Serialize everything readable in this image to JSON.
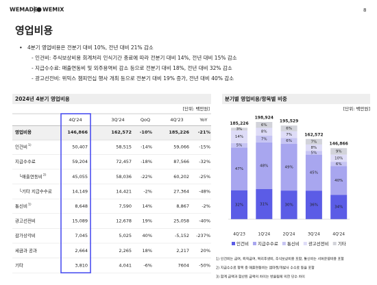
{
  "header": {
    "logo": "WEMADE",
    "logo2": "WEMIX",
    "page": "8"
  },
  "title": "영업비용",
  "bullets": {
    "main": "4분기 영업비용은 전분기 대비 10%, 전년 대비 21% 감소",
    "sub": [
      "- 인건비: 주식보상비용 회계처리 인식기간 종료에 따라 전분기 대비 14%, 전년 대비 15% 감소",
      "- 지급수수료: 매출연동비 및 외주용역비 감소 등으로 전분기 대비 18%, 전년 대비 32% 감소",
      "- 광고선전비: 위믹스 챔피언십 행사 개최 등으로 전분기 대비 19% 증가, 전년 대비 40% 감소"
    ]
  },
  "table": {
    "title": "2024년 4분기 영업비용",
    "unit": "[단위: 백만원]",
    "columns": [
      "4Q'24",
      "3Q'24",
      "QoQ",
      "4Q'23",
      "YoY"
    ],
    "rows": [
      {
        "label": "영업비용",
        "values": [
          "146,866",
          "162,572",
          "-10%",
          "185,226",
          "-21%"
        ]
      },
      {
        "label": "인건비",
        "note": "1)",
        "values": [
          "50,407",
          "58,515",
          "-14%",
          "59,066",
          "-15%"
        ]
      },
      {
        "label": "지급수수료",
        "values": [
          "59,204",
          "72,457",
          "-18%",
          "87,566",
          "-32%"
        ]
      },
      {
        "label": "└매출연동비",
        "note": "2)",
        "values": [
          "45,055",
          "58,036",
          "-22%",
          "60,202",
          "-25%"
        ]
      },
      {
        "label": "└기타 지급수수료",
        "values": [
          "14,149",
          "14,421",
          "-2%",
          "27,364",
          "-48%"
        ]
      },
      {
        "label": "통신비",
        "note": "1)",
        "values": [
          "8,648",
          "7,590",
          "14%",
          "8,867",
          "-2%"
        ]
      },
      {
        "label": "광고선전비",
        "values": [
          "15,089",
          "12,678",
          "19%",
          "25,058",
          "-40%"
        ]
      },
      {
        "label": "감가상각비",
        "values": [
          "7,045",
          "5,025",
          "40%",
          "-5,152",
          "-237%"
        ]
      },
      {
        "label": "세금과 공과",
        "values": [
          "2,664",
          "2,265",
          "18%",
          "2,217",
          "20%"
        ]
      },
      {
        "label": "기타",
        "values": [
          "3,810",
          "4,041",
          "-6%",
          "7604",
          "-50%"
        ]
      }
    ]
  },
  "chart_data": {
    "type": "stacked_bar",
    "title": "분기별 영업비용/항목별 비중",
    "unit": "[단위: 백만원]",
    "categories": [
      "4Q'23",
      "1Q'24",
      "2Q'24",
      "3Q'24",
      "4Q'24"
    ],
    "totals": {
      "values": [
        185226,
        198924,
        195529,
        162572,
        146866
      ],
      "value_labels": [
        "185,226",
        "198,924",
        "195,529",
        "162,572",
        "146,866"
      ]
    },
    "series": [
      {
        "name": "인건비",
        "color": "#5b5ce6",
        "values": [
          32,
          31,
          30,
          36,
          34
        ],
        "value_labels": [
          "32%",
          "31%",
          "30%",
          "36%",
          "34%"
        ]
      },
      {
        "name": "지급수수료",
        "color": "#a8a6ef",
        "values": [
          47,
          48,
          49,
          45,
          40
        ],
        "value_labels": [
          "47%",
          "48%",
          "49%",
          "45%",
          "40%"
        ]
      },
      {
        "name": "통신비",
        "color": "#c6c4f3",
        "values": [
          5,
          7,
          6,
          5,
          6
        ],
        "value_labels": [
          "5%",
          "7%",
          "6%",
          "5%",
          "6%"
        ]
      },
      {
        "name": "광고선전비",
        "color": "#dedcf7",
        "values": [
          14,
          8,
          7,
          8,
          10
        ],
        "value_labels": [
          "14%",
          "8%",
          "7%",
          "8%",
          "10%"
        ]
      },
      {
        "name": "기타",
        "color": "#d2d3da",
        "values": [
          3,
          6,
          6,
          7,
          9
        ],
        "value_labels": [
          "3%",
          "6%",
          "6%",
          "7%",
          "9%"
        ]
      }
    ]
  },
  "footnotes": [
    "1) 인건비는 급여, 퇴직급여, 복리후생비, 주식보상비용 포함, 통신비는 서버운영비용 포함",
    "2) 지급수수료 항목 중 매출연동비는 앱마켓/개발사 수수료 등을 포함",
    "3) 합계 금액과 합산된 금액의 차이는 반올림에 의한 단수 차이"
  ]
}
